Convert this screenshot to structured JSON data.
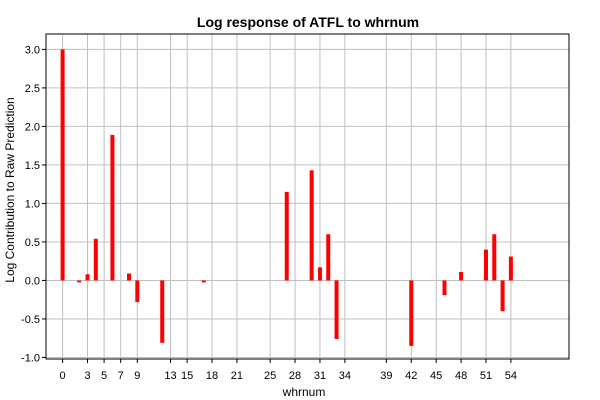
{
  "chart_data": {
    "type": "bar",
    "title": "Log response of ATFL to whrnum",
    "xlabel": "whrnum",
    "ylabel": "Log Contribution to Raw Prediction",
    "xlim": [
      -2,
      61
    ],
    "ylim": [
      -1.02,
      3.2
    ],
    "grid": true,
    "x_ticks": [
      0,
      3,
      5,
      7,
      9,
      13,
      15,
      18,
      21,
      25,
      28,
      31,
      34,
      39,
      42,
      45,
      48,
      51,
      54
    ],
    "y_ticks": [
      "-1.0",
      "-0.5",
      "0.0",
      "0.5",
      "1.0",
      "1.5",
      "2.0",
      "2.5",
      "3.0"
    ],
    "bar_color": "#ff0000",
    "series": [
      {
        "x": [
          0,
          2,
          3,
          4,
          6,
          8,
          9,
          12,
          17,
          27,
          30,
          31,
          32,
          33,
          42,
          46,
          48,
          51,
          52,
          53,
          54
        ],
        "values": [
          3.0,
          -0.02,
          0.08,
          0.54,
          1.89,
          0.09,
          -0.28,
          -0.81,
          -0.02,
          1.15,
          1.43,
          0.17,
          0.6,
          -0.76,
          -0.85,
          -0.19,
          0.11,
          0.4,
          0.6,
          -0.4,
          0.31
        ]
      }
    ]
  }
}
